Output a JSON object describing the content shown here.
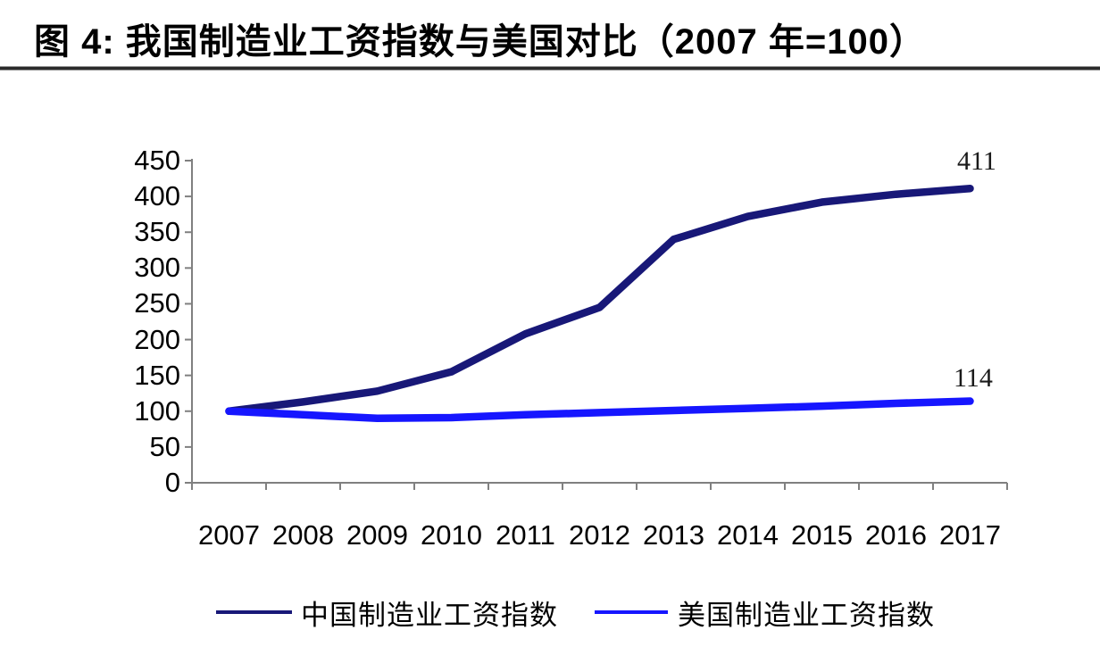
{
  "figure": {
    "title": "图 4:  我国制造业工资指数与美国对比（2007 年=100）"
  },
  "chart_data": {
    "type": "line",
    "title": "我国制造业工资指数与美国对比（2007 年=100）",
    "x": [
      2007,
      2008,
      2009,
      2010,
      2011,
      2012,
      2013,
      2014,
      2015,
      2016,
      2017
    ],
    "series": [
      {
        "name": "中国制造业工资指数",
        "color": "#181878",
        "values": [
          100,
          113,
          128,
          155,
          208,
          245,
          340,
          372,
          392,
          403,
          411
        ],
        "end_label": "411"
      },
      {
        "name": "美国制造业工资指数",
        "color": "#1616ff",
        "values": [
          100,
          95,
          90,
          91,
          95,
          98,
          101,
          104,
          107,
          111,
          114
        ],
        "end_label": "114"
      }
    ],
    "xlabel": "",
    "ylabel": "",
    "ylim": [
      0,
      450
    ],
    "ytick_step": 50,
    "grid": false,
    "legend_position": "bottom",
    "axis_color": "#808080"
  }
}
